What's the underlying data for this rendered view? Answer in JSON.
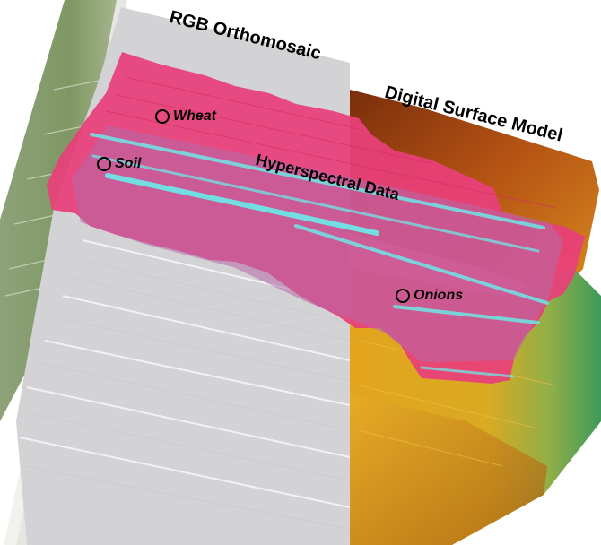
{
  "labels": {
    "rgb": "RGB Orthomosaic",
    "dsm": "Digital Surface Model",
    "hyperspectral": "Hyperspectral Data"
  },
  "sites": {
    "wheat": "Wheat",
    "soil": "Soil",
    "onions": "Onions"
  },
  "colors": {
    "rgb_field": "#d3d3d5",
    "grass_strip": "#8aa070",
    "hyperspectral_pink": "#e8407a",
    "hyperspectral_cyan": "#6fe6e6",
    "dsm_high": "#b86018",
    "dsm_mid": "#e3ad22",
    "dsm_low": "#5aa858",
    "marker": "#000000"
  }
}
